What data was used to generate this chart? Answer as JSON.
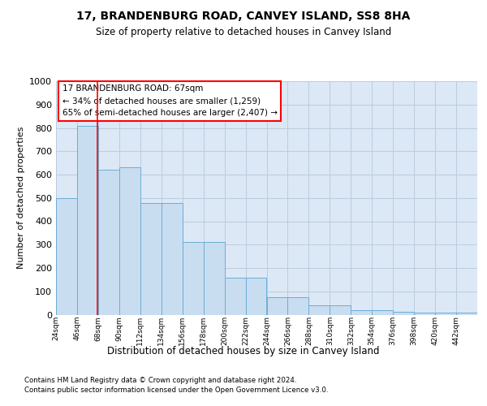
{
  "title": "17, BRANDENBURG ROAD, CANVEY ISLAND, SS8 8HA",
  "subtitle": "Size of property relative to detached houses in Canvey Island",
  "xlabel": "Distribution of detached houses by size in Canvey Island",
  "ylabel": "Number of detached properties",
  "footer1": "Contains HM Land Registry data © Crown copyright and database right 2024.",
  "footer2": "Contains public sector information licensed under the Open Government Licence v3.0.",
  "annotation_title": "17 BRANDENBURG ROAD: 67sqm",
  "annotation_line1": "← 34% of detached houses are smaller (1,259)",
  "annotation_line2": "65% of semi-detached houses are larger (2,407) →",
  "bar_color": "#c9ddf0",
  "bar_edge_color": "#6aaed6",
  "red_line_x": 67,
  "bin_edges": [
    24,
    46,
    68,
    90,
    112,
    134,
    156,
    178,
    200,
    222,
    244,
    266,
    288,
    310,
    332,
    354,
    376,
    398,
    420,
    442,
    464
  ],
  "bar_heights": [
    500,
    810,
    620,
    630,
    480,
    480,
    310,
    310,
    160,
    160,
    75,
    75,
    40,
    40,
    20,
    20,
    12,
    10,
    8,
    8
  ],
  "ylim": [
    0,
    1000
  ],
  "yticks": [
    0,
    100,
    200,
    300,
    400,
    500,
    600,
    700,
    800,
    900,
    1000
  ],
  "bg_color": "#dce8f5",
  "grid_color": "#b8cde0",
  "fig_bg": "#ffffff",
  "title_fontsize": 10,
  "subtitle_fontsize": 8.5,
  "ylabel_fontsize": 8,
  "xlabel_fontsize": 8.5,
  "ytick_fontsize": 8,
  "xtick_fontsize": 6.5,
  "footer_fontsize": 6.2,
  "ann_fontsize": 7.5
}
